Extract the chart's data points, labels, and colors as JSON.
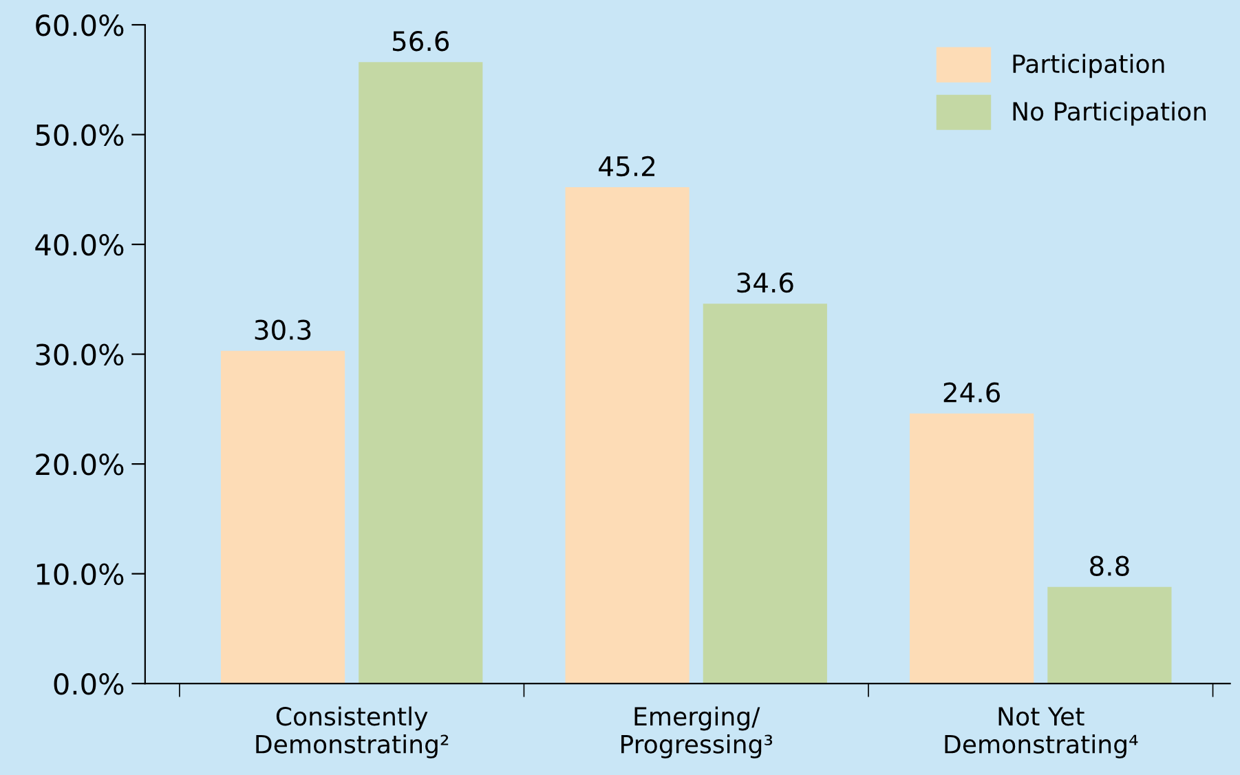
{
  "chart_data": {
    "type": "bar",
    "categories": [
      "Consistently\nDemonstrating²",
      "Emerging/\nProgressing³",
      "Not Yet\nDemonstrating⁴"
    ],
    "series": [
      {
        "name": "Participation",
        "color": "#fddcb6",
        "values": [
          30.3,
          45.2,
          24.6
        ]
      },
      {
        "name": "No Participation",
        "color": "#c4d8a4",
        "values": [
          56.6,
          34.6,
          8.8
        ]
      }
    ],
    "ylim": [
      0,
      60
    ],
    "yticks": [
      {
        "value": 0,
        "label": "0.0%"
      },
      {
        "value": 10,
        "label": "10.0%"
      },
      {
        "value": 20,
        "label": "20.0%"
      },
      {
        "value": 30,
        "label": "30.0%"
      },
      {
        "value": 40,
        "label": "40.0%"
      },
      {
        "value": 50,
        "label": "50.0%"
      },
      {
        "value": 60,
        "label": "60.0%"
      }
    ],
    "data_labels": true,
    "legend": "top right",
    "grid": false
  }
}
